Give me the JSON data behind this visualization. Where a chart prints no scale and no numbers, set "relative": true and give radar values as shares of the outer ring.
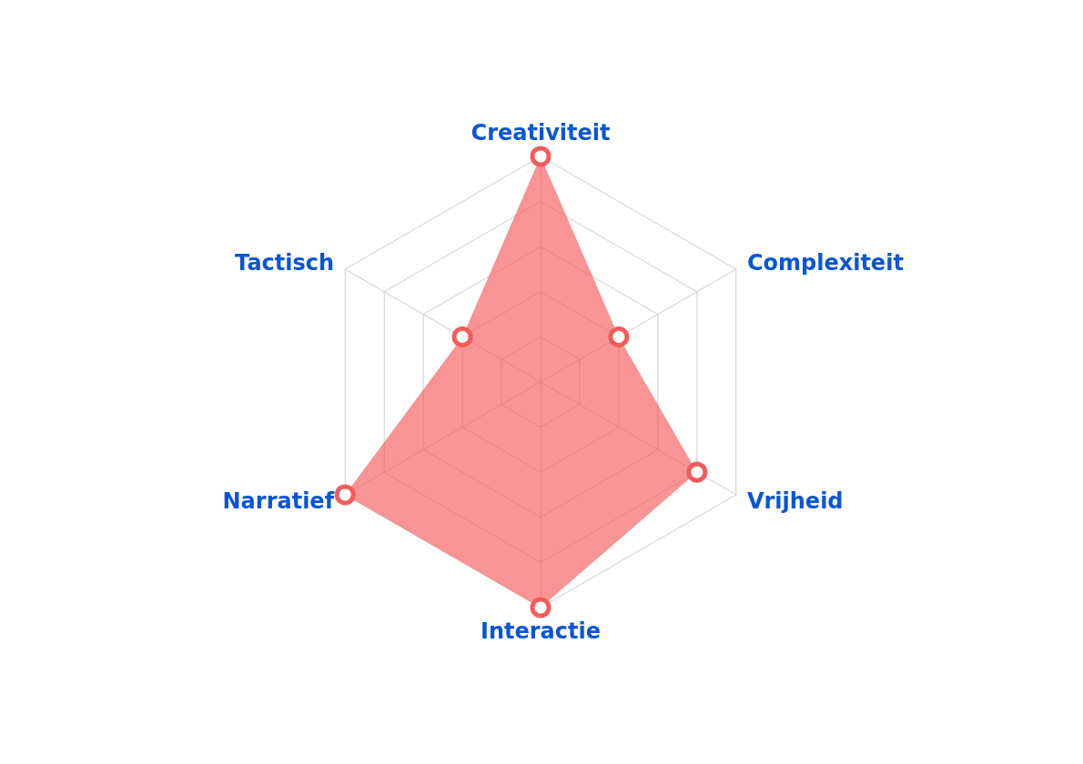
{
  "chart_data": {
    "type": "radar",
    "relative": true,
    "categories": [
      "Creativiteit",
      "Complexiteit",
      "Vrijheid",
      "Interactie",
      "Narratief",
      "Tactisch"
    ],
    "marker": "circle",
    "series": [
      {
        "color": "#f45b5b",
        "values": [
          1.0,
          0.4,
          0.8,
          1.0,
          1.0,
          0.4
        ]
      }
    ]
  }
}
